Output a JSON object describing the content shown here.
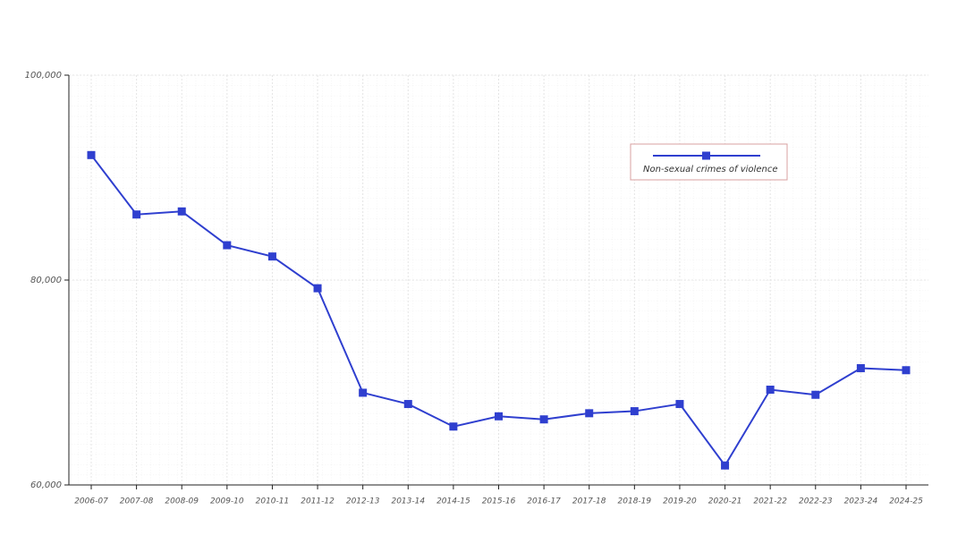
{
  "chart_data": {
    "type": "line",
    "categories": [
      "2006-07",
      "2007-08",
      "2008-09",
      "2009-10",
      "2010-11",
      "2011-12",
      "2012-13",
      "2013-14",
      "2014-15",
      "2015-16",
      "2016-17",
      "2017-18",
      "2018-19",
      "2019-20",
      "2020-21",
      "2021-22",
      "2022-23",
      "2023-24",
      "2024-25"
    ],
    "series": [
      {
        "name": "Non-sexual crimes of violence",
        "color": "#2f3fcf",
        "values": [
          92200,
          86400,
          86700,
          83400,
          82300,
          79200,
          69000,
          67900,
          65700,
          66700,
          66400,
          67000,
          67200,
          67900,
          61900,
          69300,
          68800,
          71400,
          71200
        ]
      }
    ],
    "ylim": [
      60000,
      100000
    ],
    "yticks": [
      {
        "value": 60000,
        "label": "60,000"
      },
      {
        "value": 80000,
        "label": "80,000"
      },
      {
        "value": 100000,
        "label": "100,000"
      }
    ],
    "grid": true,
    "legend": "upper-right"
  }
}
